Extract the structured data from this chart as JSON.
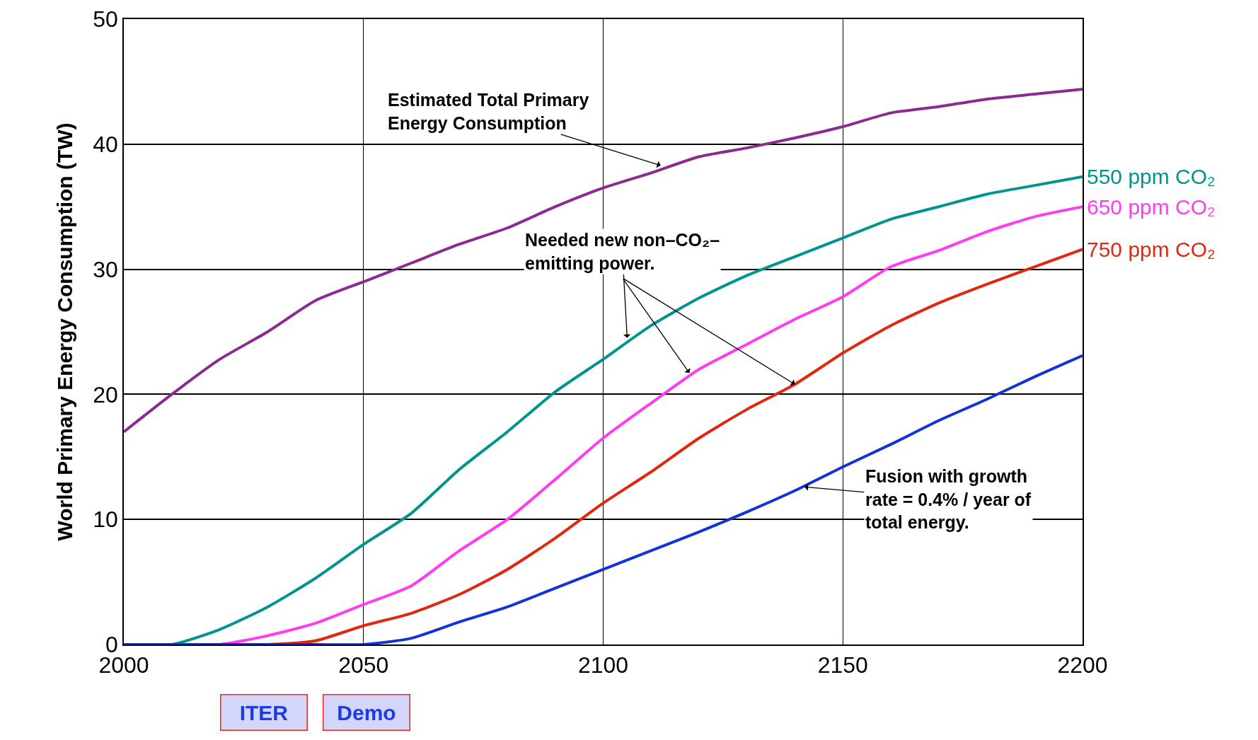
{
  "chart_data": {
    "type": "line",
    "ylabel": "World Primary Energy Consumption (TW)",
    "x": [
      2000,
      2010,
      2020,
      2030,
      2040,
      2050,
      2060,
      2070,
      2080,
      2090,
      2100,
      2110,
      2120,
      2130,
      2140,
      2150,
      2160,
      2170,
      2180,
      2190,
      2200
    ],
    "series": [
      {
        "color": "#8b2a92",
        "values": [
          17,
          20,
          22.8,
          25,
          27.5,
          29,
          30.5,
          32,
          33.3,
          35,
          36.5,
          37.7,
          39,
          39.7,
          40.5,
          41.4,
          42.5,
          43,
          43.6,
          44,
          44.4
        ]
      },
      {
        "name": "550 ppm CO₂",
        "color": "#00948f",
        "values": [
          0,
          0,
          1.2,
          3,
          5.3,
          8,
          10.5,
          14,
          17,
          20.2,
          22.8,
          25.5,
          27.7,
          29.5,
          31,
          32.5,
          34,
          35,
          36,
          36.7,
          37.4
        ]
      },
      {
        "name": "650 ppm CO₂",
        "color": "#ff3cf0",
        "values": [
          0,
          0,
          0,
          0.7,
          1.7,
          3.2,
          4.7,
          7.5,
          10,
          13.2,
          16.5,
          19.3,
          22,
          24,
          26,
          27.8,
          30.2,
          31.5,
          33,
          34.2,
          35
        ]
      },
      {
        "name": "750 ppm CO₂",
        "color": "#e0280f",
        "values": [
          null,
          null,
          0,
          0,
          0.3,
          1.5,
          2.5,
          4,
          6,
          8.5,
          11.3,
          13.8,
          16.5,
          18.8,
          20.8,
          23.3,
          25.5,
          27.3,
          28.8,
          30.2,
          31.6
        ]
      },
      {
        "color": "#1432d8",
        "values": [
          0,
          0,
          0,
          0,
          0,
          0,
          0.5,
          1.8,
          3,
          4.5,
          6,
          7.5,
          9,
          10.6,
          12.3,
          14.2,
          16,
          17.9,
          19.6,
          21.4,
          23.1
        ]
      }
    ],
    "xlim": [
      2000,
      2200
    ],
    "xticks": [
      2000,
      2050,
      2100,
      2150,
      2200
    ],
    "ylim": [
      0,
      50
    ],
    "yticks": [
      0,
      10,
      20,
      30,
      40,
      50
    ],
    "grid": true,
    "legend": false,
    "marker": "none",
    "line_style": "solid",
    "annotations": [
      {
        "text": "Estimated Total Primary\nEnergy Consumption",
        "x": 2112,
        "y": 38.3
      },
      {
        "text": "Needed new non–CO₂–\nemitting power.",
        "x": 2105,
        "y": 24.5
      },
      {
        "text": "Fusion with growth\nrate = 0.4% / year of\ntotal energy.",
        "x": 2142,
        "y": 12.6
      },
      "ITER",
      "Demo"
    ]
  }
}
